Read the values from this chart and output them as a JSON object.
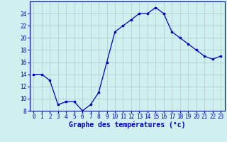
{
  "hours": [
    0,
    1,
    2,
    3,
    4,
    5,
    6,
    7,
    8,
    9,
    10,
    11,
    12,
    13,
    14,
    15,
    16,
    17,
    18,
    19,
    20,
    21,
    22,
    23
  ],
  "temps": [
    14,
    14,
    13,
    9,
    9.5,
    9.5,
    8,
    9,
    11,
    16,
    21,
    22,
    23,
    24,
    24,
    25,
    24,
    21,
    20,
    19,
    18,
    17,
    16.5,
    17
  ],
  "line_color": "#0000cc",
  "marker": "s",
  "marker_size": 1.8,
  "bg_color": "#d0f0f0",
  "grid_color": "#b0c8c8",
  "axis_label_color": "#0000cc",
  "xlabel": "Graphe des températures (°c)",
  "ylim": [
    8,
    26
  ],
  "yticks": [
    8,
    10,
    12,
    14,
    16,
    18,
    20,
    22,
    24
  ],
  "xlim": [
    -0.5,
    23.5
  ],
  "xticks": [
    0,
    1,
    2,
    3,
    4,
    5,
    6,
    7,
    8,
    9,
    10,
    11,
    12,
    13,
    14,
    15,
    16,
    17,
    18,
    19,
    20,
    21,
    22,
    23
  ],
  "tick_fontsize": 5.5,
  "xlabel_fontsize": 7.0
}
